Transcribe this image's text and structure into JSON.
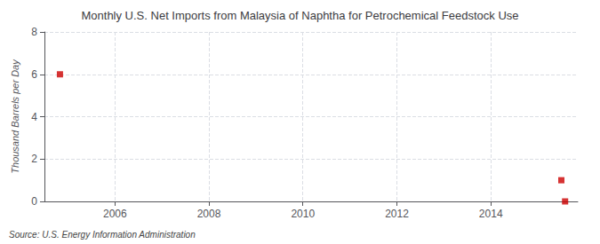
{
  "chart_data": {
    "type": "scatter",
    "title": "Monthly U.S. Net Imports from Malaysia of Naphtha for Petrochemical Feedstock Use",
    "ylabel": "Thousand Barrels per Day",
    "source": "Source: U.S. Energy Information Administration",
    "x": [
      2004.83,
      2015.5,
      2015.58
    ],
    "values": [
      6.0,
      1.0,
      0.0
    ],
    "color": "#cc0000",
    "marker": "square",
    "xlim": [
      2004.5,
      2015.85
    ],
    "ylim": [
      0,
      8
    ],
    "xticks": [
      2006,
      2008,
      2010,
      2012,
      2014
    ],
    "yticks": [
      0,
      2,
      4,
      6,
      8
    ],
    "grid": true
  }
}
